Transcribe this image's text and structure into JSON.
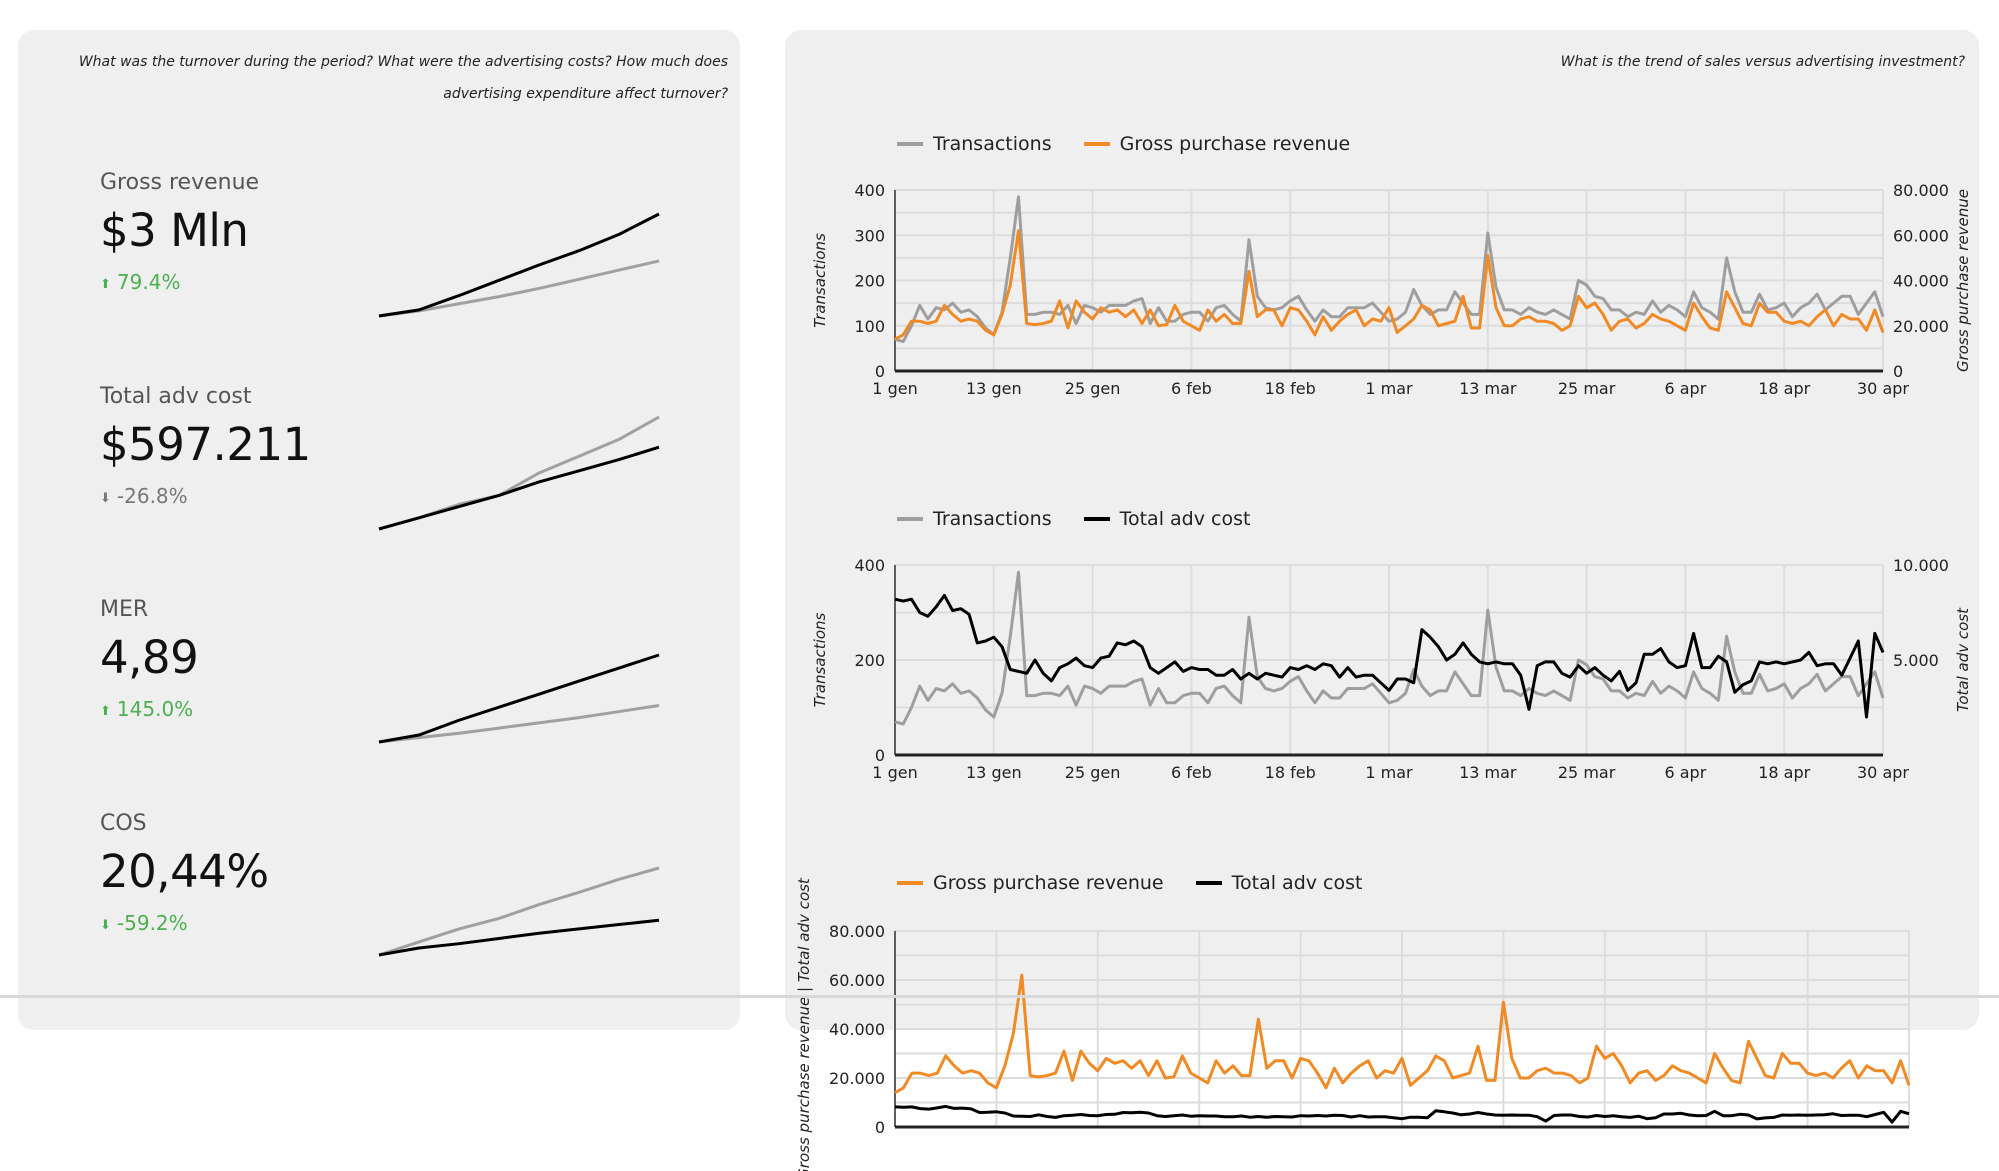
{
  "left_panel": {
    "question": "What was the turnover during the period? What were the advertising costs? How much does advertising expenditure affect turnover?",
    "kpis": [
      {
        "label": "Gross revenue",
        "value": "$3 Mln",
        "delta": "79.4%",
        "direction": "up",
        "delta_color": "#4caf50",
        "spark": {
          "current": [
            0,
            0.06,
            0.2,
            0.35,
            0.5,
            0.64,
            0.8,
            1.0
          ],
          "previous": [
            0,
            0.05,
            0.12,
            0.19,
            0.27,
            0.36,
            0.45,
            0.54
          ]
        }
      },
      {
        "label": "Total adv cost",
        "value": "$597.211",
        "delta": "-26.8%",
        "direction": "down",
        "delta_color": "#777777",
        "spark": {
          "current": [
            0,
            0.1,
            0.2,
            0.3,
            0.42,
            0.52,
            0.62,
            0.73
          ],
          "previous": [
            0,
            0.1,
            0.22,
            0.3,
            0.5,
            0.65,
            0.8,
            1.0
          ]
        }
      },
      {
        "label": "MER",
        "value": "4,89",
        "delta": "145.0%",
        "direction": "up",
        "delta_color": "#4caf50",
        "spark": {
          "current": [
            0,
            0.08,
            0.25,
            0.4,
            0.55,
            0.7,
            0.85,
            1.0
          ],
          "previous": [
            0,
            0.05,
            0.1,
            0.16,
            0.22,
            0.28,
            0.35,
            0.42
          ]
        }
      },
      {
        "label": "COS",
        "value": "20,44%",
        "delta": "-59.2%",
        "direction": "down",
        "delta_color": "#4caf50",
        "spark": {
          "current": [
            0,
            0.08,
            0.13,
            0.19,
            0.25,
            0.3,
            0.35,
            0.4
          ],
          "previous": [
            0,
            0.15,
            0.3,
            0.42,
            0.58,
            0.72,
            0.87,
            1.0
          ]
        }
      }
    ]
  },
  "right_panel": {
    "question": "What is the trend of sales versus advertising investment?"
  },
  "colors": {
    "transactions": "#9e9e9e",
    "revenue": "#f08a24",
    "adv_cost": "#000000",
    "positive": "#4caf50"
  },
  "chart_data": [
    {
      "type": "line",
      "legend": [
        "Transactions",
        "Gross purchase revenue"
      ],
      "x_ticks": [
        "1 gen",
        "13 gen",
        "25 gen",
        "6 feb",
        "18 feb",
        "1 mar",
        "13 mar",
        "25 mar",
        "6 apr",
        "18 apr",
        "30 apr"
      ],
      "ylabel": "Transactions",
      "y2label": "Gross purchase revenue",
      "ylim": [
        0,
        400
      ],
      "y_ticks": [
        "0",
        "100",
        "200",
        "300",
        "400"
      ],
      "y2lim": [
        0,
        80000
      ],
      "y2_ticks": [
        "0",
        "20.000",
        "40.000",
        "60.000",
        "80.000"
      ],
      "series": [
        {
          "name": "Transactions",
          "axis": "left",
          "color_key": "transactions"
        },
        {
          "name": "Gross purchase revenue",
          "axis": "right",
          "color_key": "revenue"
        }
      ]
    },
    {
      "type": "line",
      "legend": [
        "Transactions",
        "Total adv cost"
      ],
      "x_ticks": [
        "1 gen",
        "13 gen",
        "25 gen",
        "6 feb",
        "18 feb",
        "1 mar",
        "13 mar",
        "25 mar",
        "6 apr",
        "18 apr",
        "30 apr"
      ],
      "ylabel": "Transactions",
      "y2label": "Total adv cost",
      "ylim": [
        0,
        400
      ],
      "y_ticks": [
        "0",
        "200",
        "400"
      ],
      "y2lim": [
        0,
        10000
      ],
      "y2_ticks": [
        "5.000",
        "10.000"
      ],
      "series": [
        {
          "name": "Transactions",
          "axis": "left",
          "color_key": "transactions"
        },
        {
          "name": "Total adv cost",
          "axis": "right",
          "color_key": "adv_cost"
        }
      ]
    },
    {
      "type": "line",
      "legend": [
        "Gross purchase revenue",
        "Total adv cost"
      ],
      "ylabel": "Gross purchase revenue | Total adv cost",
      "ylim": [
        0,
        80000
      ],
      "y_ticks": [
        "0",
        "20.000",
        "40.000",
        "60.000",
        "80.000"
      ],
      "series": [
        {
          "name": "Gross purchase revenue",
          "axis": "left",
          "color_key": "revenue"
        },
        {
          "name": "Total adv cost",
          "axis": "left",
          "color_key": "adv_cost"
        }
      ]
    }
  ],
  "daily": {
    "transactions": [
      70,
      65,
      100,
      145,
      115,
      140,
      135,
      150,
      130,
      135,
      120,
      95,
      80,
      130,
      250,
      385,
      125,
      125,
      130,
      130,
      125,
      145,
      105,
      145,
      140,
      130,
      145,
      145,
      145,
      155,
      160,
      105,
      140,
      110,
      110,
      125,
      130,
      130,
      110,
      140,
      145,
      125,
      110,
      290,
      165,
      140,
      135,
      140,
      155,
      165,
      135,
      110,
      135,
      120,
      120,
      140,
      140,
      140,
      150,
      130,
      110,
      115,
      130,
      180,
      145,
      125,
      135,
      135,
      175,
      150,
      125,
      125,
      305,
      185,
      135,
      135,
      125,
      140,
      130,
      125,
      135,
      125,
      115,
      200,
      190,
      165,
      160,
      135,
      135,
      120,
      130,
      125,
      155,
      130,
      145,
      135,
      120,
      175,
      140,
      130,
      115,
      250,
      175,
      130,
      130,
      170,
      135,
      140,
      150,
      120,
      140,
      150,
      170,
      135,
      150,
      165,
      165,
      125,
      150,
      175,
      120
    ],
    "gross_purchase_revenue": [
      14000,
      16000,
      22000,
      22000,
      21000,
      22000,
      29000,
      25000,
      22000,
      23000,
      22000,
      18000,
      16000,
      25000,
      38000,
      62000,
      21000,
      20500,
      21000,
      22000,
      31000,
      19000,
      31000,
      26000,
      23000,
      28000,
      26000,
      27000,
      24000,
      27000,
      21000,
      27000,
      20000,
      20500,
      29000,
      22000,
      20000,
      18000,
      27000,
      22000,
      25000,
      21000,
      21000,
      44000,
      24000,
      27000,
      27000,
      20000,
      28000,
      27000,
      22000,
      16000,
      24000,
      18000,
      22000,
      25000,
      27000,
      20000,
      23000,
      22000,
      28000,
      17000,
      20000,
      23000,
      29000,
      27000,
      20000,
      21000,
      22000,
      33000,
      19000,
      19000,
      51000,
      28000,
      20000,
      20000,
      23000,
      24000,
      22000,
      22000,
      21000,
      18000,
      20000,
      33000,
      28000,
      30000,
      25000,
      18000,
      22000,
      23000,
      19000,
      21000,
      25000,
      23000,
      22000,
      20000,
      18000,
      30000,
      24000,
      19000,
      18000,
      35000,
      28000,
      21000,
      20000,
      30000,
      26000,
      26000,
      22000,
      21000,
      22000,
      20000,
      24000,
      27000,
      20000,
      25000,
      23000,
      23000,
      18000,
      27000,
      17000
    ],
    "total_adv_cost": [
      8200,
      8100,
      8200,
      7500,
      7300,
      7800,
      8400,
      7600,
      7700,
      7400,
      5900,
      6000,
      6200,
      5700,
      4500,
      4400,
      4300,
      5000,
      4300,
      3900,
      4600,
      4800,
      5100,
      4700,
      4600,
      5100,
      5200,
      5900,
      5800,
      6000,
      5700,
      4600,
      4300,
      4600,
      4900,
      4400,
      4600,
      4500,
      4500,
      4200,
      4200,
      4500,
      4000,
      4300,
      4000,
      4300,
      4200,
      4100,
      4600,
      4500,
      4700,
      4500,
      4800,
      4700,
      4100,
      4600,
      4100,
      4200,
      4200,
      3800,
      3400,
      4000,
      4000,
      3800,
      6600,
      6200,
      5700,
      5000,
      5300,
      5900,
      5300,
      4900,
      4800,
      4900,
      4800,
      4800,
      4200,
      2400,
      4700,
      4900,
      4900,
      4300,
      4100,
      4700,
      4300,
      4600,
      4200,
      3900,
      4400,
      3400,
      3800,
      5300,
      5300,
      5600,
      4900,
      4600,
      4700,
      6400,
      4600,
      4600,
      5200,
      4900,
      3300,
      3700,
      3900,
      4900,
      4800,
      4900,
      4800,
      4900,
      5000,
      5400,
      4700,
      4800,
      4800,
      4200,
      5100,
      6000,
      2000,
      6400,
      5400
    ]
  }
}
